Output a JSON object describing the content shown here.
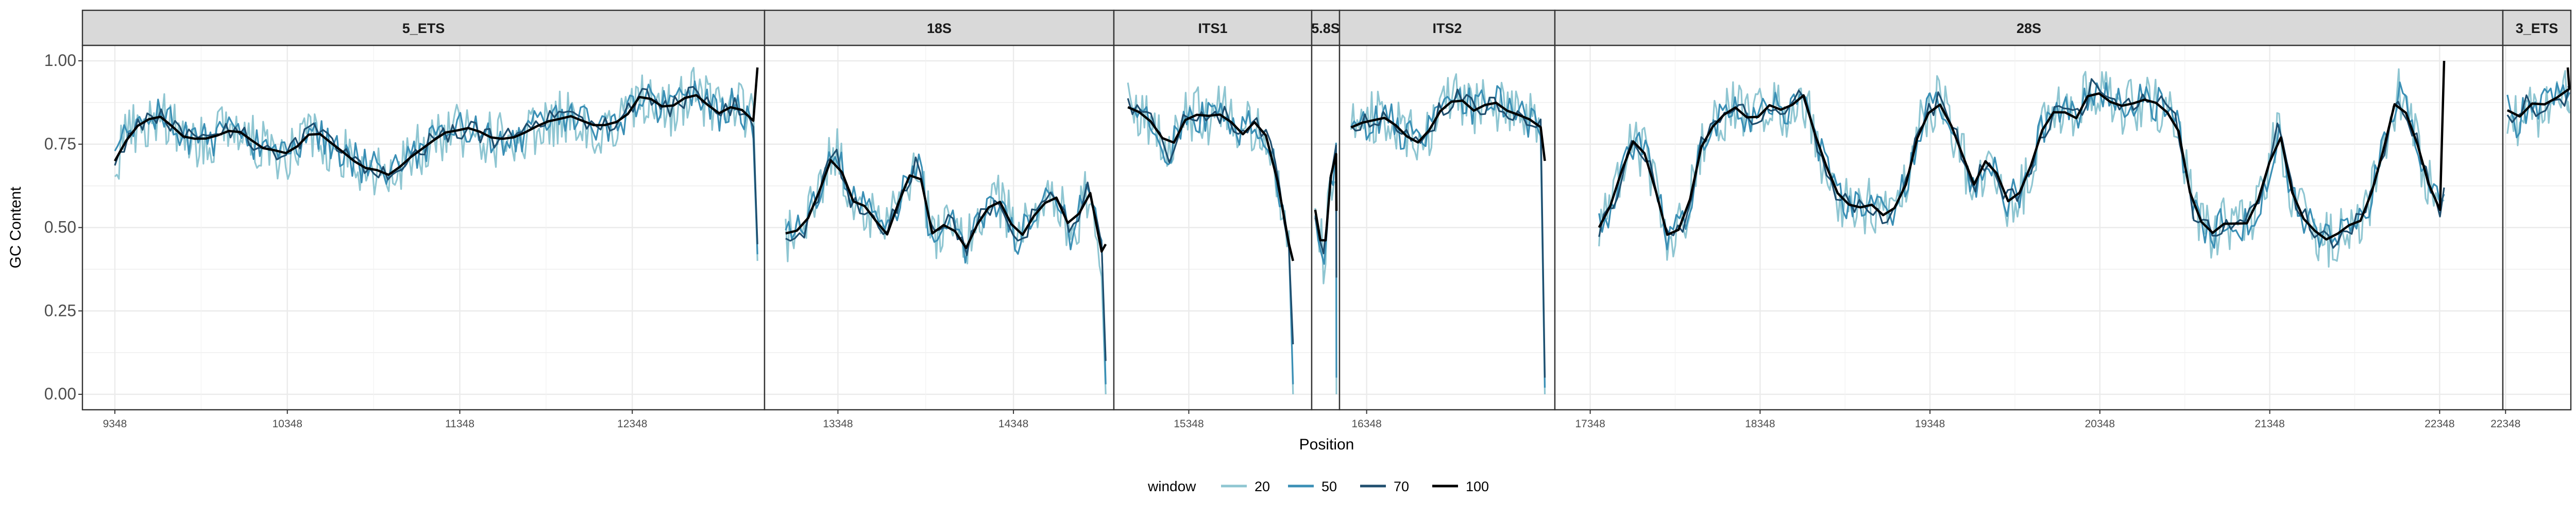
{
  "chart_data": {
    "type": "line",
    "facet_by": "region",
    "xlabel": "Position",
    "ylabel": "GC Content",
    "ylim": [
      0,
      1
    ],
    "yticks": [
      "0.00",
      "0.25",
      "0.50",
      "0.75",
      "1.00"
    ],
    "legend": {
      "title": "window",
      "placement": "bottom",
      "entries": [
        "20",
        "50",
        "70",
        "100"
      ]
    },
    "colors": {
      "20": "#8fc6d2",
      "50": "#3a8fb5",
      "70": "#1f4e6e",
      "100": "#000000",
      "strip": "#d9d9d9",
      "grid": "#ebebeb"
    },
    "panels": [
      {
        "name": "5_ETS",
        "xrange": [
          9160,
          13115
        ],
        "xticks": [
          {
            "v": 9348,
            "label": "9348"
          },
          {
            "v": 10348,
            "label": "10348"
          },
          {
            "v": 11348,
            "label": "11348"
          },
          {
            "v": 12348,
            "label": "12348"
          }
        ],
        "key_points": [
          [
            9348,
            0.7
          ],
          [
            9450,
            0.8
          ],
          [
            9600,
            0.84
          ],
          [
            9750,
            0.77
          ],
          [
            9900,
            0.76
          ],
          [
            10050,
            0.8
          ],
          [
            10200,
            0.74
          ],
          [
            10350,
            0.72
          ],
          [
            10500,
            0.79
          ],
          [
            10650,
            0.73
          ],
          [
            10800,
            0.68
          ],
          [
            10950,
            0.66
          ],
          [
            11100,
            0.73
          ],
          [
            11250,
            0.78
          ],
          [
            11400,
            0.8
          ],
          [
            11550,
            0.76
          ],
          [
            11700,
            0.78
          ],
          [
            11850,
            0.82
          ],
          [
            12000,
            0.84
          ],
          [
            12150,
            0.8
          ],
          [
            12300,
            0.83
          ],
          [
            12400,
            0.9
          ],
          [
            12550,
            0.85
          ],
          [
            12700,
            0.9
          ],
          [
            12850,
            0.84
          ],
          [
            12950,
            0.87
          ],
          [
            13050,
            0.82
          ]
        ],
        "end_values": {
          "20": 0.4,
          "50": 0.42,
          "70": 0.45,
          "100": 0.98
        }
      },
      {
        "name": "18S",
        "xrange": [
          12930,
          14920
        ],
        "xticks": [
          {
            "v": 13348,
            "label": "13348"
          },
          {
            "v": 14348,
            "label": "14348"
          }
        ],
        "key_points": [
          [
            13050,
            0.48
          ],
          [
            13150,
            0.49
          ],
          [
            13250,
            0.62
          ],
          [
            13330,
            0.74
          ],
          [
            13420,
            0.58
          ],
          [
            13520,
            0.56
          ],
          [
            13620,
            0.47
          ],
          [
            13720,
            0.62
          ],
          [
            13800,
            0.7
          ],
          [
            13880,
            0.48
          ],
          [
            13980,
            0.52
          ],
          [
            14080,
            0.44
          ],
          [
            14180,
            0.55
          ],
          [
            14280,
            0.58
          ],
          [
            14380,
            0.46
          ],
          [
            14480,
            0.55
          ],
          [
            14580,
            0.6
          ],
          [
            14680,
            0.48
          ],
          [
            14780,
            0.62
          ],
          [
            14850,
            0.43
          ]
        ],
        "end_values": {
          "20": 0.0,
          "50": 0.03,
          "70": 0.1,
          "100": 0.45
        }
      },
      {
        "name": "ITS1",
        "xrange": [
          14920,
          16050
        ],
        "xticks": [
          {
            "v": 15348,
            "label": "15348"
          }
        ],
        "key_points": [
          [
            15000,
            0.86
          ],
          [
            15080,
            0.84
          ],
          [
            15160,
            0.8
          ],
          [
            15240,
            0.72
          ],
          [
            15320,
            0.82
          ],
          [
            15400,
            0.84
          ],
          [
            15480,
            0.83
          ],
          [
            15560,
            0.85
          ],
          [
            15640,
            0.77
          ],
          [
            15720,
            0.82
          ],
          [
            15800,
            0.77
          ],
          [
            15870,
            0.6
          ],
          [
            15920,
            0.45
          ]
        ],
        "end_values": {
          "20": 0.0,
          "50": 0.03,
          "70": 0.15,
          "100": 0.4
        }
      },
      {
        "name": "5.8S",
        "xrange": [
          16040,
          16200
        ],
        "xticks": [],
        "key_points": [
          [
            16060,
            0.55
          ],
          [
            16110,
            0.4
          ],
          [
            16150,
            0.65
          ],
          [
            16180,
            0.72
          ]
        ],
        "end_values": {
          "20": 0.0,
          "50": 0.05,
          "70": 0.35,
          "100": 0.55
        }
      },
      {
        "name": "ITS2",
        "xrange": [
          16195,
          17410
        ],
        "xticks": [
          {
            "v": 16348,
            "label": "16348"
          }
        ],
        "key_points": [
          [
            16260,
            0.8
          ],
          [
            16360,
            0.82
          ],
          [
            16460,
            0.83
          ],
          [
            16560,
            0.78
          ],
          [
            16660,
            0.75
          ],
          [
            16760,
            0.85
          ],
          [
            16860,
            0.9
          ],
          [
            16960,
            0.85
          ],
          [
            17060,
            0.88
          ],
          [
            17160,
            0.84
          ],
          [
            17260,
            0.82
          ],
          [
            17330,
            0.8
          ]
        ],
        "end_values": {
          "20": 0.0,
          "50": 0.02,
          "70": 0.05,
          "100": 0.7
        }
      },
      {
        "name": "28S",
        "xrange": [
          17140,
          22720
        ],
        "xticks": [
          {
            "v": 17348,
            "label": "17348"
          },
          {
            "v": 18348,
            "label": "18348"
          },
          {
            "v": 19348,
            "label": "19348"
          },
          {
            "v": 20348,
            "label": "20348"
          },
          {
            "v": 21348,
            "label": "21348"
          },
          {
            "v": 22348,
            "label": "22348"
          }
        ],
        "key_points": [
          [
            17400,
            0.5
          ],
          [
            17500,
            0.6
          ],
          [
            17580,
            0.77
          ],
          [
            17680,
            0.72
          ],
          [
            17800,
            0.48
          ],
          [
            17900,
            0.5
          ],
          [
            18000,
            0.74
          ],
          [
            18100,
            0.83
          ],
          [
            18200,
            0.86
          ],
          [
            18300,
            0.82
          ],
          [
            18400,
            0.87
          ],
          [
            18500,
            0.84
          ],
          [
            18600,
            0.9
          ],
          [
            18700,
            0.73
          ],
          [
            18800,
            0.6
          ],
          [
            18900,
            0.55
          ],
          [
            19000,
            0.57
          ],
          [
            19100,
            0.52
          ],
          [
            19200,
            0.62
          ],
          [
            19300,
            0.82
          ],
          [
            19400,
            0.88
          ],
          [
            19500,
            0.78
          ],
          [
            19600,
            0.62
          ],
          [
            19700,
            0.72
          ],
          [
            19800,
            0.58
          ],
          [
            19900,
            0.62
          ],
          [
            20000,
            0.78
          ],
          [
            20100,
            0.86
          ],
          [
            20200,
            0.82
          ],
          [
            20300,
            0.92
          ],
          [
            20400,
            0.88
          ],
          [
            20500,
            0.86
          ],
          [
            20600,
            0.88
          ],
          [
            20700,
            0.87
          ],
          [
            20800,
            0.82
          ],
          [
            20900,
            0.55
          ],
          [
            21000,
            0.48
          ],
          [
            21100,
            0.52
          ],
          [
            21200,
            0.5
          ],
          [
            21300,
            0.6
          ],
          [
            21400,
            0.8
          ],
          [
            21500,
            0.56
          ],
          [
            21600,
            0.5
          ],
          [
            21700,
            0.46
          ],
          [
            21800,
            0.5
          ],
          [
            21900,
            0.52
          ],
          [
            22000,
            0.7
          ],
          [
            22100,
            0.9
          ],
          [
            22200,
            0.78
          ],
          [
            22300,
            0.6
          ],
          [
            22350,
            0.55
          ]
        ],
        "end_values": {
          "20": 0.58,
          "50": 0.6,
          "70": 0.62,
          "100": 1.0
        }
      },
      {
        "name": "3_ETS",
        "xrange": [
          22330,
          22780
        ],
        "xticks": [
          {
            "v": 22348,
            "label": "22348"
          }
        ],
        "key_points": [
          [
            22360,
            0.85
          ],
          [
            22430,
            0.82
          ],
          [
            22500,
            0.88
          ],
          [
            22580,
            0.85
          ],
          [
            22650,
            0.9
          ],
          [
            22720,
            0.88
          ],
          [
            22770,
            0.92
          ]
        ],
        "end_values": {
          "20": 0.88,
          "50": 0.9,
          "70": 0.92,
          "100": 0.98
        }
      }
    ]
  }
}
